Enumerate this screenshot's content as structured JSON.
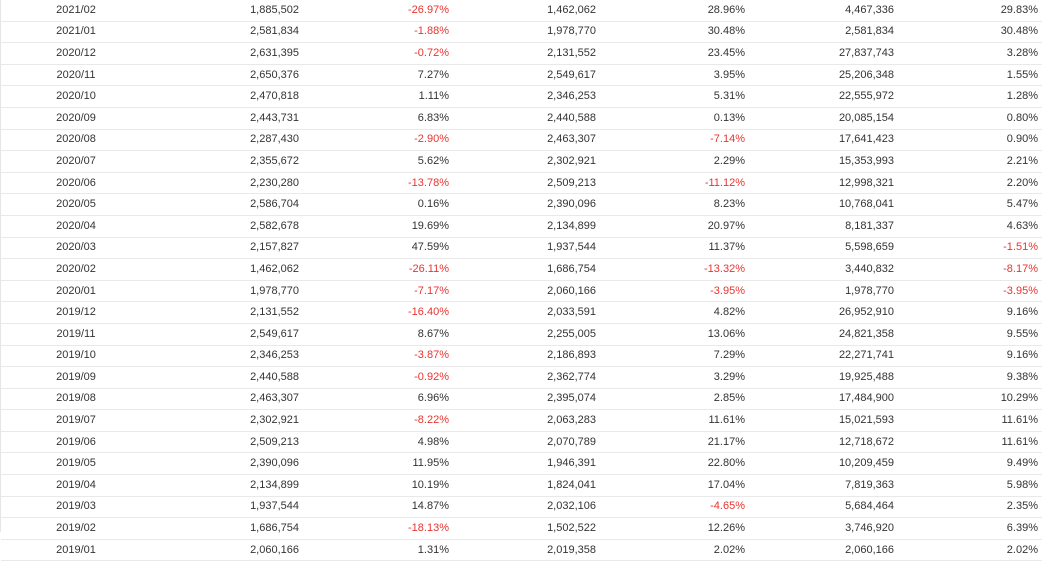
{
  "colors": {
    "negative": "#e8342f",
    "text": "#333333",
    "border": "#e9e9e9"
  },
  "rows": [
    [
      "2021/02",
      "1,885,502",
      "-26.97%",
      "1,462,062",
      "28.96%",
      "4,467,336",
      "29.83%"
    ],
    [
      "2021/01",
      "2,581,834",
      "-1.88%",
      "1,978,770",
      "30.48%",
      "2,581,834",
      "30.48%"
    ],
    [
      "2020/12",
      "2,631,395",
      "-0.72%",
      "2,131,552",
      "23.45%",
      "27,837,743",
      "3.28%"
    ],
    [
      "2020/11",
      "2,650,376",
      "7.27%",
      "2,549,617",
      "3.95%",
      "25,206,348",
      "1.55%"
    ],
    [
      "2020/10",
      "2,470,818",
      "1.11%",
      "2,346,253",
      "5.31%",
      "22,555,972",
      "1.28%"
    ],
    [
      "2020/09",
      "2,443,731",
      "6.83%",
      "2,440,588",
      "0.13%",
      "20,085,154",
      "0.80%"
    ],
    [
      "2020/08",
      "2,287,430",
      "-2.90%",
      "2,463,307",
      "-7.14%",
      "17,641,423",
      "0.90%"
    ],
    [
      "2020/07",
      "2,355,672",
      "5.62%",
      "2,302,921",
      "2.29%",
      "15,353,993",
      "2.21%"
    ],
    [
      "2020/06",
      "2,230,280",
      "-13.78%",
      "2,509,213",
      "-11.12%",
      "12,998,321",
      "2.20%"
    ],
    [
      "2020/05",
      "2,586,704",
      "0.16%",
      "2,390,096",
      "8.23%",
      "10,768,041",
      "5.47%"
    ],
    [
      "2020/04",
      "2,582,678",
      "19.69%",
      "2,134,899",
      "20.97%",
      "8,181,337",
      "4.63%"
    ],
    [
      "2020/03",
      "2,157,827",
      "47.59%",
      "1,937,544",
      "11.37%",
      "5,598,659",
      "-1.51%"
    ],
    [
      "2020/02",
      "1,462,062",
      "-26.11%",
      "1,686,754",
      "-13.32%",
      "3,440,832",
      "-8.17%"
    ],
    [
      "2020/01",
      "1,978,770",
      "-7.17%",
      "2,060,166",
      "-3.95%",
      "1,978,770",
      "-3.95%"
    ],
    [
      "2019/12",
      "2,131,552",
      "-16.40%",
      "2,033,591",
      "4.82%",
      "26,952,910",
      "9.16%"
    ],
    [
      "2019/11",
      "2,549,617",
      "8.67%",
      "2,255,005",
      "13.06%",
      "24,821,358",
      "9.55%"
    ],
    [
      "2019/10",
      "2,346,253",
      "-3.87%",
      "2,186,893",
      "7.29%",
      "22,271,741",
      "9.16%"
    ],
    [
      "2019/09",
      "2,440,588",
      "-0.92%",
      "2,362,774",
      "3.29%",
      "19,925,488",
      "9.38%"
    ],
    [
      "2019/08",
      "2,463,307",
      "6.96%",
      "2,395,074",
      "2.85%",
      "17,484,900",
      "10.29%"
    ],
    [
      "2019/07",
      "2,302,921",
      "-8.22%",
      "2,063,283",
      "11.61%",
      "15,021,593",
      "11.61%"
    ],
    [
      "2019/06",
      "2,509,213",
      "4.98%",
      "2,070,789",
      "21.17%",
      "12,718,672",
      "11.61%"
    ],
    [
      "2019/05",
      "2,390,096",
      "11.95%",
      "1,946,391",
      "22.80%",
      "10,209,459",
      "9.49%"
    ],
    [
      "2019/04",
      "2,134,899",
      "10.19%",
      "1,824,041",
      "17.04%",
      "7,819,363",
      "5.98%"
    ],
    [
      "2019/03",
      "1,937,544",
      "14.87%",
      "2,032,106",
      "-4.65%",
      "5,684,464",
      "2.35%"
    ],
    [
      "2019/02",
      "1,686,754",
      "-18.13%",
      "1,502,522",
      "12.26%",
      "3,746,920",
      "6.39%"
    ],
    [
      "2019/01",
      "2,060,166",
      "1.31%",
      "2,019,358",
      "2.02%",
      "2,060,166",
      "2.02%"
    ]
  ]
}
